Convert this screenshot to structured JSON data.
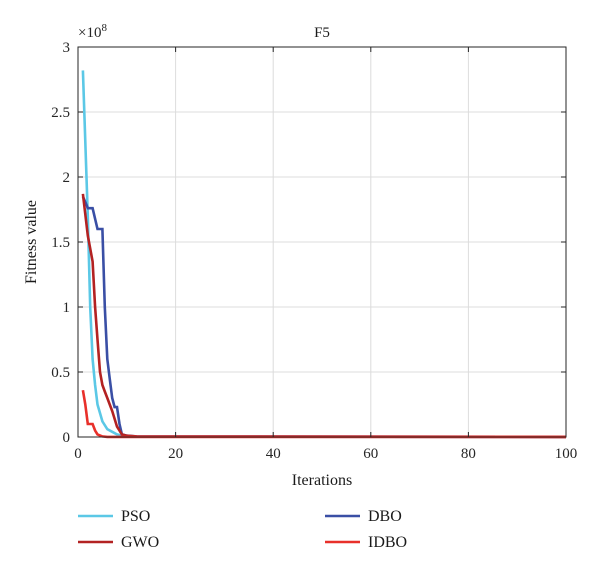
{
  "chart_data": {
    "type": "line",
    "title": "F5",
    "xlabel": "Iterations",
    "ylabel": "Fitness value",
    "y_multiplier_label": "×10",
    "y_multiplier_exponent": "8",
    "xlim": [
      0,
      100
    ],
    "ylim": [
      0,
      3
    ],
    "xticks": [
      0,
      20,
      40,
      60,
      80,
      100
    ],
    "yticks": [
      0,
      0.5,
      1,
      1.5,
      2,
      2.5,
      3
    ],
    "ytick_labels": [
      "0",
      "0.5",
      "1",
      "1.5",
      "2",
      "2.5",
      "3"
    ],
    "grid": true,
    "legend_position": "bottom",
    "series": [
      {
        "name": "PSO",
        "color": "#5bc8e6",
        "x": [
          1,
          2,
          2.5,
          3,
          3.5,
          4,
          5,
          6,
          7,
          8,
          9,
          10,
          12,
          100
        ],
        "y": [
          2.82,
          1.7,
          1.0,
          0.6,
          0.4,
          0.25,
          0.12,
          0.06,
          0.04,
          0.02,
          0.01,
          0.005,
          0.002,
          0.001
        ]
      },
      {
        "name": "DBO",
        "color": "#3a4fa5",
        "x": [
          1,
          1.8,
          2,
          3,
          4,
          4.2,
          5,
          5.5,
          6,
          6.5,
          7,
          7.5,
          8,
          8.5,
          9,
          10,
          12,
          100
        ],
        "y": [
          1.85,
          1.78,
          1.76,
          1.76,
          1.6,
          1.6,
          1.6,
          1.0,
          0.6,
          0.45,
          0.3,
          0.23,
          0.23,
          0.1,
          0.02,
          0.01,
          0.005,
          0.001
        ]
      },
      {
        "name": "GWO",
        "color": "#b32222",
        "x": [
          1,
          2,
          3,
          3.5,
          4,
          4.5,
          5,
          5.5,
          6,
          7,
          8,
          9,
          10,
          12,
          100
        ],
        "y": [
          1.87,
          1.55,
          1.35,
          1.0,
          0.75,
          0.5,
          0.4,
          0.35,
          0.3,
          0.2,
          0.08,
          0.02,
          0.01,
          0.005,
          0.001
        ]
      },
      {
        "name": "IDBO",
        "color": "#e8302a",
        "x": [
          1,
          1.5,
          2,
          3,
          3.5,
          4,
          5,
          6,
          10,
          100
        ],
        "y": [
          0.36,
          0.25,
          0.1,
          0.1,
          0.05,
          0.02,
          0.005,
          0.001,
          0.001,
          0.001
        ]
      }
    ]
  }
}
